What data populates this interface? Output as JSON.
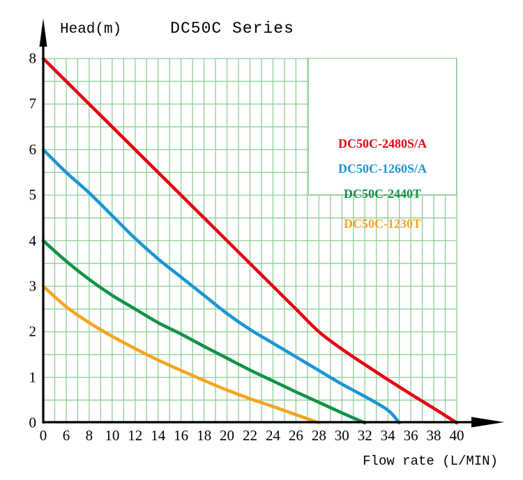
{
  "title": "DC50C Series",
  "axes": {
    "y_label": "Head(m)",
    "x_label": "Flow rate (L/MIN)",
    "y_ticks": [
      "0",
      "1",
      "2",
      "3",
      "4",
      "5",
      "6",
      "7",
      "8"
    ],
    "x_ticks": [
      "0",
      "6",
      "8",
      "10",
      "12",
      "14",
      "16",
      "18",
      "20",
      "22",
      "24",
      "26",
      "28",
      "30",
      "32",
      "34",
      "36",
      "38",
      "40"
    ]
  },
  "legend": {
    "items": [
      {
        "label": "DC50C-2480S/A",
        "color": "#e60012"
      },
      {
        "label": "DC50C-1260S/A",
        "color": "#1b95d5"
      },
      {
        "label": "DC50C-2440T",
        "color": "#0f9347"
      },
      {
        "label": "DC50C-1230T",
        "color": "#f5a41f"
      }
    ]
  },
  "style": {
    "grid_color": "#8fcd96",
    "axis_color": "#000000",
    "background": "#ffffff"
  },
  "chart_data": {
    "type": "line",
    "title": "DC50C Series",
    "xlabel": "Flow rate (L/MIN)",
    "ylabel": "Head(m)",
    "xlim": [
      0,
      40
    ],
    "ylim": [
      0,
      8
    ],
    "grid": true,
    "legend_position": "upper-right",
    "x_tick_labels": [
      0,
      6,
      8,
      10,
      12,
      14,
      16,
      18,
      20,
      22,
      24,
      26,
      28,
      30,
      32,
      34,
      36,
      38,
      40
    ],
    "x_axis_note": "non-linear start: first grid division spans 0-6 L/MIN, each later division is 2 L/MIN",
    "series": [
      {
        "name": "DC50C-2480S/A",
        "color": "#e60012",
        "points": [
          [
            0,
            8
          ],
          [
            6,
            7.5
          ],
          [
            8,
            7
          ],
          [
            10,
            6.5
          ],
          [
            12,
            6
          ],
          [
            14,
            5.5
          ],
          [
            16,
            5
          ],
          [
            18,
            4.5
          ],
          [
            20,
            4
          ],
          [
            22,
            3.5
          ],
          [
            24,
            3
          ],
          [
            26,
            2.5
          ],
          [
            28,
            2
          ],
          [
            30,
            1.62
          ],
          [
            32,
            1.28
          ],
          [
            34,
            0.95
          ],
          [
            36,
            0.63
          ],
          [
            38,
            0.32
          ],
          [
            40,
            0
          ]
        ]
      },
      {
        "name": "DC50C-1260S/A",
        "color": "#1b95d5",
        "points": [
          [
            0,
            6
          ],
          [
            6,
            5.5
          ],
          [
            8,
            5.05
          ],
          [
            10,
            4.55
          ],
          [
            12,
            4.05
          ],
          [
            14,
            3.6
          ],
          [
            16,
            3.2
          ],
          [
            18,
            2.8
          ],
          [
            20,
            2.4
          ],
          [
            22,
            2.05
          ],
          [
            24,
            1.75
          ],
          [
            26,
            1.45
          ],
          [
            28,
            1.15
          ],
          [
            30,
            0.85
          ],
          [
            32,
            0.58
          ],
          [
            34,
            0.28
          ],
          [
            35,
            0
          ]
        ]
      },
      {
        "name": "DC50C-2440T",
        "color": "#0f9347",
        "points": [
          [
            0,
            4
          ],
          [
            6,
            3.55
          ],
          [
            8,
            3.15
          ],
          [
            10,
            2.8
          ],
          [
            12,
            2.5
          ],
          [
            14,
            2.2
          ],
          [
            16,
            1.95
          ],
          [
            18,
            1.68
          ],
          [
            20,
            1.42
          ],
          [
            22,
            1.16
          ],
          [
            24,
            0.92
          ],
          [
            26,
            0.68
          ],
          [
            28,
            0.45
          ],
          [
            30,
            0.22
          ],
          [
            32,
            0
          ]
        ]
      },
      {
        "name": "DC50C-1230T",
        "color": "#f5a41f",
        "points": [
          [
            0,
            3
          ],
          [
            6,
            2.55
          ],
          [
            8,
            2.2
          ],
          [
            10,
            1.9
          ],
          [
            12,
            1.63
          ],
          [
            14,
            1.38
          ],
          [
            16,
            1.15
          ],
          [
            18,
            0.93
          ],
          [
            20,
            0.72
          ],
          [
            22,
            0.53
          ],
          [
            24,
            0.36
          ],
          [
            26,
            0.18
          ],
          [
            28,
            0
          ]
        ]
      }
    ]
  }
}
